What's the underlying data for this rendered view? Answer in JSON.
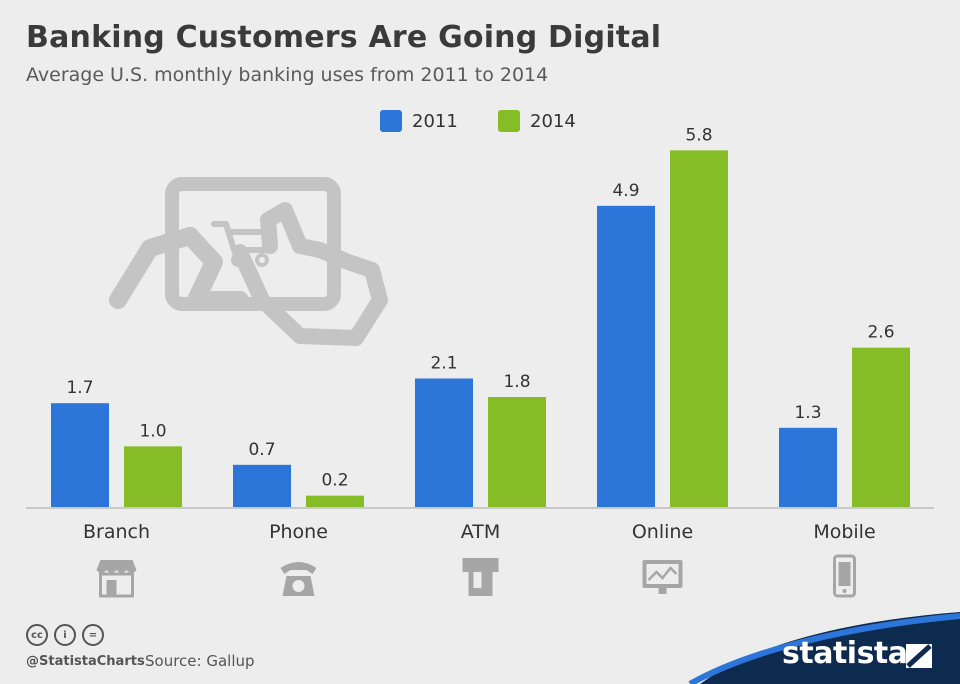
{
  "title": "Banking Customers Are Going Digital",
  "subtitle": "Average U.S. monthly banking uses from 2011 to 2014",
  "colors": {
    "s2011": "#2d76d9",
    "s2014": "#86bc25",
    "icon": "#a6a6a6",
    "brand": "#0d2b4f"
  },
  "chart_data": {
    "type": "bar",
    "categories": [
      "Branch",
      "Phone",
      "ATM",
      "Online",
      "Mobile"
    ],
    "series": [
      {
        "name": "2011",
        "values": [
          1.7,
          0.7,
          2.1,
          4.9,
          1.3
        ]
      },
      {
        "name": "2014",
        "values": [
          1.0,
          0.2,
          1.8,
          5.8,
          2.6
        ]
      }
    ],
    "value_labels": [
      [
        "1.7",
        "0.7",
        "2.1",
        "4.9",
        "1.3"
      ],
      [
        "1.0",
        "0.2",
        "1.8",
        "5.8",
        "2.6"
      ]
    ],
    "ylim": [
      0,
      6.0
    ],
    "grid": false,
    "legend_position": "top-center",
    "category_icons": [
      "storefront-icon",
      "telephone-icon",
      "atm-icon",
      "monitor-chart-icon",
      "smartphone-icon"
    ]
  },
  "footer": {
    "handle": "@StatistaCharts",
    "source": "Source: Gallup",
    "brand": "statista"
  }
}
